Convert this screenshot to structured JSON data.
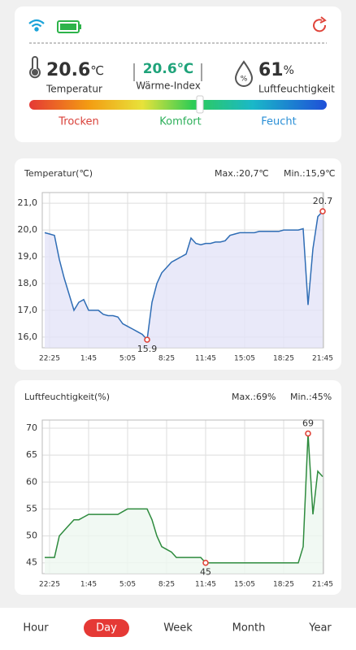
{
  "status": {
    "temperature": {
      "value": 20.6,
      "unit": "℃",
      "label": "Temperatur"
    },
    "heat_index": {
      "value": 20.6,
      "unit": "℃",
      "label": "Wärme-Index"
    },
    "humidity": {
      "value": 61,
      "unit": "%",
      "label": "Luftfeuchtigkeit",
      "icon_text": "%"
    },
    "comfort_scale": [
      "Trocken",
      "Komfort",
      "Feucht"
    ]
  },
  "chart_data": [
    {
      "type": "line",
      "title": "Temperatur(℃)",
      "max_label": "Max.:20,7℃",
      "min_label": "Min.:15,9℃",
      "color": "#2f6db5",
      "fill": "#e4e4f8",
      "grid": true,
      "categories": [
        null,
        "22:25",
        null,
        null,
        null,
        null,
        null,
        null,
        null,
        "1:45",
        null,
        null,
        null,
        null,
        null,
        null,
        null,
        "5:05",
        null,
        null,
        null,
        null,
        null,
        null,
        null,
        "8:25",
        null,
        null,
        null,
        null,
        null,
        null,
        null,
        "11:45",
        null,
        null,
        null,
        null,
        null,
        null,
        null,
        "15:05",
        null,
        null,
        null,
        null,
        null,
        null,
        null,
        "18:25",
        null,
        null,
        null,
        null,
        null,
        null,
        null,
        "21:45"
      ],
      "values": [
        19.9,
        19.85,
        19.8,
        18.9,
        18.2,
        17.6,
        17.0,
        17.3,
        17.4,
        17.0,
        17.0,
        17.0,
        16.85,
        16.8,
        16.8,
        16.75,
        16.5,
        16.4,
        16.3,
        16.2,
        16.1,
        15.9,
        17.3,
        18.0,
        18.4,
        18.6,
        18.8,
        18.9,
        19.0,
        19.1,
        19.7,
        19.5,
        19.45,
        19.5,
        19.5,
        19.55,
        19.55,
        19.6,
        19.8,
        19.85,
        19.9,
        19.9,
        19.9,
        19.9,
        19.95,
        19.95,
        19.95,
        19.95,
        19.95,
        20.0,
        20.0,
        20.0,
        20.0,
        20.05,
        17.2,
        19.3,
        20.5,
        20.7
      ],
      "ylim": [
        15.6,
        21.4
      ],
      "yticks": [
        {
          "value": 16,
          "label": "16,0"
        },
        {
          "value": 17,
          "label": "17,0"
        },
        {
          "value": 18,
          "label": "18,0"
        },
        {
          "value": 19,
          "label": "19,0"
        },
        {
          "value": 20,
          "label": "20,0"
        },
        {
          "value": 21,
          "label": "21,0"
        }
      ]
    },
    {
      "type": "line",
      "title": "Luftfeuchtigkeit(%)",
      "max_label": "Max.:69%",
      "min_label": "Min.:45%",
      "color": "#2e8b3e",
      "fill": "#eef8f0",
      "grid": true,
      "categories": [
        null,
        "22:25",
        null,
        null,
        null,
        null,
        null,
        null,
        null,
        "1:45",
        null,
        null,
        null,
        null,
        null,
        null,
        null,
        "5:05",
        null,
        null,
        null,
        null,
        null,
        null,
        null,
        "8:25",
        null,
        null,
        null,
        null,
        null,
        null,
        null,
        "11:45",
        null,
        null,
        null,
        null,
        null,
        null,
        null,
        "15:05",
        null,
        null,
        null,
        null,
        null,
        null,
        null,
        "18:25",
        null,
        null,
        null,
        null,
        null,
        null,
        null,
        "21:45"
      ],
      "values": [
        46,
        46,
        46,
        50,
        51,
        52,
        53,
        53,
        53.5,
        54,
        54,
        54,
        54,
        54,
        54,
        54,
        54.5,
        55,
        55,
        55,
        55,
        55,
        53,
        50,
        48,
        47.5,
        47,
        46,
        46,
        46,
        46,
        46,
        46,
        45,
        45,
        45,
        45,
        45,
        45,
        45,
        45,
        45,
        45,
        45,
        45,
        45,
        45,
        45,
        45,
        45,
        45,
        45,
        45,
        48,
        69,
        54,
        62,
        61
      ],
      "ylim": [
        43,
        71.5
      ],
      "yticks": [
        45,
        50,
        55,
        60,
        65,
        70
      ]
    }
  ],
  "tabs": [
    "Hour",
    "Day",
    "Week",
    "Month",
    "Year"
  ],
  "selected_tab": 1
}
